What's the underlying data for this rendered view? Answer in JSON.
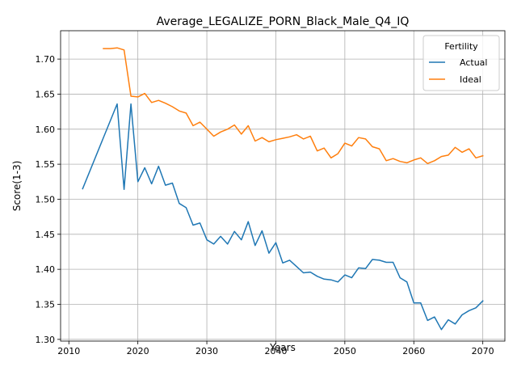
{
  "chart_data": {
    "type": "line",
    "title": "Average_LEGALIZE_PORN_Black_Male_Q4_IQ",
    "xlabel": "Years",
    "ylabel": "Score(1-3)",
    "xlim": [
      2008.8,
      2073.2
    ],
    "ylim": [
      1.2975,
      1.7405
    ],
    "xticks": [
      2010,
      2020,
      2030,
      2040,
      2050,
      2060,
      2070
    ],
    "yticks": [
      1.3,
      1.35,
      1.4,
      1.45,
      1.5,
      1.55,
      1.6,
      1.65,
      1.7
    ],
    "grid": true,
    "legend": {
      "title": "Fertility",
      "placement": "top-right"
    },
    "series": [
      {
        "name": "Actual",
        "color": "#1f77b4",
        "x": [
          2012,
          2017,
          2018,
          2019,
          2020,
          2021,
          2022,
          2023,
          2024,
          2025,
          2026,
          2027,
          2028,
          2029,
          2030,
          2031,
          2032,
          2033,
          2034,
          2035,
          2036,
          2037,
          2038,
          2039,
          2040,
          2041,
          2042,
          2043,
          2044,
          2045,
          2046,
          2047,
          2048,
          2049,
          2050,
          2051,
          2052,
          2053,
          2054,
          2055,
          2056,
          2057,
          2058,
          2059,
          2060,
          2061,
          2062,
          2063,
          2064,
          2065,
          2066,
          2067,
          2068,
          2069,
          2070
        ],
        "y": [
          1.515,
          1.636,
          1.514,
          1.636,
          1.525,
          1.545,
          1.522,
          1.547,
          1.52,
          1.523,
          1.494,
          1.488,
          1.463,
          1.466,
          1.442,
          1.436,
          1.447,
          1.436,
          1.454,
          1.442,
          1.468,
          1.434,
          1.455,
          1.423,
          1.438,
          1.409,
          1.413,
          1.404,
          1.395,
          1.396,
          1.39,
          1.386,
          1.385,
          1.382,
          1.392,
          1.388,
          1.402,
          1.401,
          1.414,
          1.413,
          1.41,
          1.41,
          1.388,
          1.382,
          1.352,
          1.352,
          1.327,
          1.332,
          1.314,
          1.328,
          1.322,
          1.335,
          1.341,
          1.345,
          1.355
        ]
      },
      {
        "name": "Ideal",
        "color": "#ff7f0e",
        "x": [
          2015,
          2016,
          2017,
          2018,
          2019,
          2020,
          2021,
          2022,
          2023,
          2024,
          2025,
          2026,
          2027,
          2028,
          2029,
          2030,
          2031,
          2032,
          2033,
          2034,
          2035,
          2036,
          2037,
          2038,
          2039,
          2040,
          2041,
          2042,
          2043,
          2044,
          2045,
          2046,
          2047,
          2048,
          2049,
          2050,
          2051,
          2052,
          2053,
          2054,
          2055,
          2056,
          2057,
          2058,
          2059,
          2060,
          2061,
          2062,
          2063,
          2064,
          2065,
          2066,
          2067,
          2068,
          2069,
          2070
        ],
        "y": [
          1.715,
          1.715,
          1.716,
          1.713,
          1.647,
          1.646,
          1.651,
          1.638,
          1.641,
          1.637,
          1.632,
          1.626,
          1.623,
          1.605,
          1.61,
          1.6,
          1.59,
          1.596,
          1.6,
          1.606,
          1.593,
          1.605,
          1.583,
          1.588,
          1.582,
          1.585,
          1.587,
          1.589,
          1.592,
          1.586,
          1.59,
          1.569,
          1.573,
          1.559,
          1.565,
          1.58,
          1.576,
          1.588,
          1.586,
          1.575,
          1.572,
          1.555,
          1.558,
          1.554,
          1.552,
          1.556,
          1.559,
          1.551,
          1.555,
          1.561,
          1.563,
          1.574,
          1.567,
          1.572,
          1.559,
          1.562
        ]
      }
    ]
  }
}
